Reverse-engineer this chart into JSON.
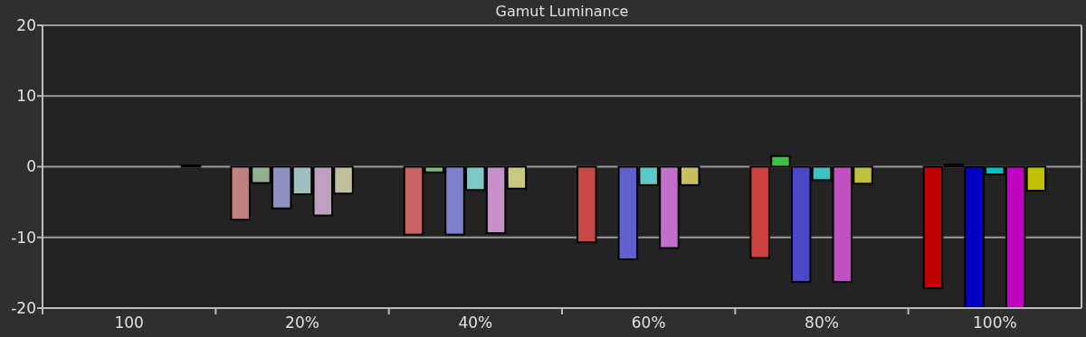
{
  "chart_data": {
    "type": "bar",
    "title": "Gamut Luminance",
    "categories": [
      "100",
      "20%",
      "40%",
      "60%",
      "80%",
      "100%"
    ],
    "series": [
      {
        "colors": [
          null,
          "#c08080",
          "#c86464",
          "#c84848",
          "#d04040",
          "#c00000"
        ],
        "values": [
          null,
          -7.5,
          -9.6,
          -10.7,
          -12.9,
          -17.2
        ]
      },
      {
        "colors": [
          null,
          "#90b090",
          "#70c070",
          null,
          "#40c040",
          "#202020"
        ],
        "values": [
          null,
          -2.3,
          -0.8,
          null,
          1.5,
          0.3
        ]
      },
      {
        "colors": [
          null,
          "#9090c0",
          "#8080d0",
          "#6060d0",
          "#4848c8",
          "#0000c0"
        ],
        "values": [
          null,
          -5.9,
          -9.6,
          -13.1,
          -16.3,
          -20
        ]
      },
      {
        "colors": [
          null,
          "#a0c0c0",
          "#80c8c8",
          "#60c8c8",
          "#40c0c0",
          "#00c0c0"
        ],
        "values": [
          null,
          -3.9,
          -3.3,
          -2.6,
          -1.9,
          -1.1
        ]
      },
      {
        "colors": [
          null,
          "#c0a0c0",
          "#c890c8",
          "#c070c8",
          "#c050c0",
          "#c000c0"
        ],
        "values": [
          null,
          -6.9,
          -9.4,
          -11.5,
          -16.3,
          -20
        ]
      },
      {
        "colors": [
          null,
          "#c0c0a0",
          "#c8c880",
          "#c8c060",
          "#c0c040",
          "#c0c000"
        ],
        "values": [
          null,
          -3.8,
          -3.1,
          -2.6,
          -2.4,
          -3.4
        ]
      },
      {
        "colors": [
          "#101010",
          null,
          null,
          null,
          null,
          null
        ],
        "values": [
          0.2,
          null,
          null,
          null,
          null,
          null
        ]
      }
    ],
    "ylim": [
      -20,
      20
    ],
    "yticks": [
      20,
      10,
      0,
      -10,
      -20
    ],
    "grid": "y"
  }
}
